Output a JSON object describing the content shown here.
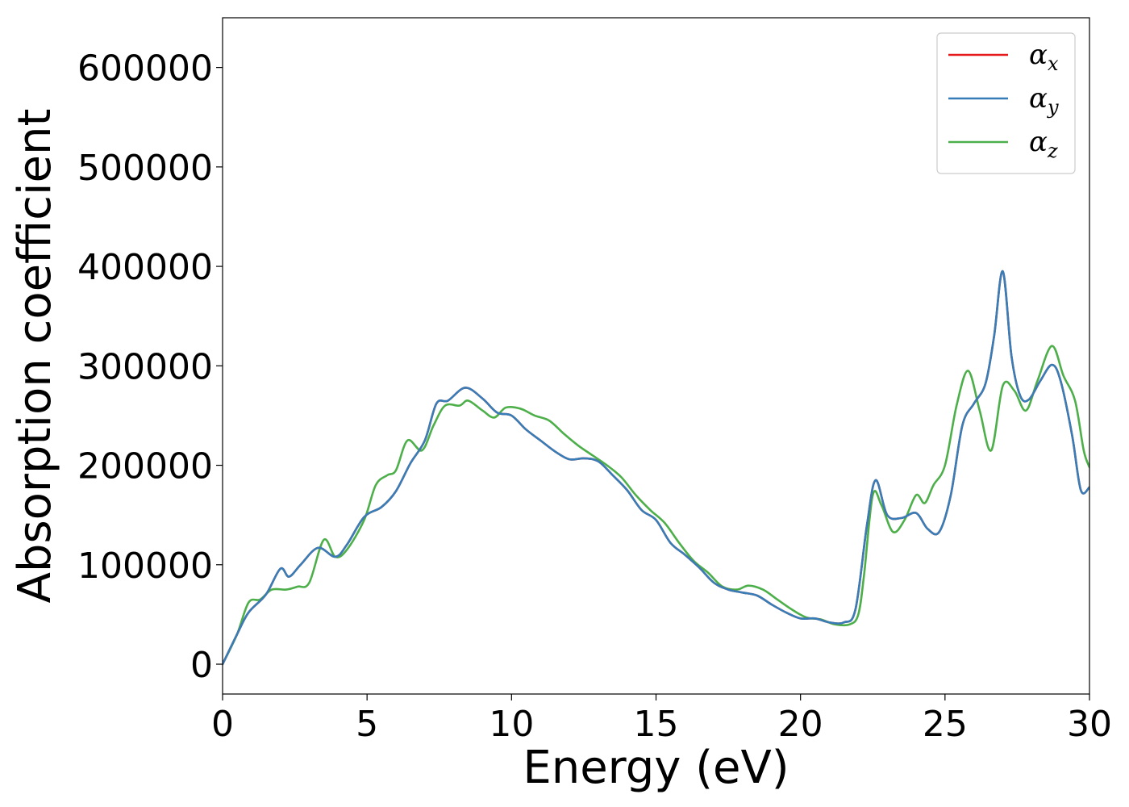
{
  "chart_data": {
    "type": "line",
    "title": "",
    "xlabel": "Energy (eV)",
    "ylabel": "Absorption coefficient",
    "xlim": [
      0,
      30
    ],
    "ylim": [
      -30000,
      650000
    ],
    "xticks": [
      0,
      5,
      10,
      15,
      20,
      25,
      30
    ],
    "yticks": [
      0,
      100000,
      200000,
      300000,
      400000,
      500000,
      600000
    ],
    "grid": false,
    "legend_position": "top-right",
    "series": [
      {
        "name": "αx",
        "legend_base": "α",
        "legend_sub": "x",
        "color": "#e41a1c",
        "x": [
          0,
          0.5,
          0.9,
          1.5,
          2.0,
          2.3,
          2.7,
          3.3,
          3.9,
          4.3,
          4.9,
          5.5,
          6.0,
          6.5,
          7.0,
          7.4,
          7.8,
          8.4,
          9.0,
          9.5,
          10.0,
          10.5,
          11.0,
          11.5,
          12.0,
          12.5,
          13.0,
          13.5,
          14.0,
          14.5,
          15.0,
          15.5,
          16.0,
          16.5,
          17.0,
          17.5,
          18.0,
          18.5,
          19.0,
          19.5,
          20.0,
          20.5,
          21.0,
          21.5,
          21.9,
          22.3,
          22.6,
          23.0,
          23.5,
          24.0,
          24.4,
          24.8,
          25.2,
          25.6,
          26.0,
          26.4,
          26.7,
          27.0,
          27.3,
          27.6,
          27.9,
          28.3,
          28.7,
          29.0,
          29.4,
          29.7,
          30.0
        ],
        "y": [
          0,
          30000,
          52000,
          70000,
          96000,
          88000,
          100000,
          117000,
          108000,
          120000,
          148000,
          158000,
          174000,
          202000,
          225000,
          262000,
          265000,
          278000,
          267000,
          253000,
          250000,
          236000,
          225000,
          214000,
          206000,
          207000,
          204000,
          190000,
          175000,
          155000,
          145000,
          122000,
          110000,
          97000,
          82000,
          75000,
          72000,
          69000,
          60000,
          52000,
          46000,
          46000,
          42000,
          42000,
          55000,
          140000,
          185000,
          150000,
          147000,
          152000,
          136000,
          133000,
          170000,
          240000,
          262000,
          282000,
          330000,
          395000,
          310000,
          270000,
          266000,
          285000,
          301000,
          285000,
          230000,
          175000,
          178000
        ]
      },
      {
        "name": "αy",
        "legend_base": "α",
        "legend_sub": "y",
        "color": "#377eb8",
        "x": [
          0,
          0.5,
          0.9,
          1.5,
          2.0,
          2.3,
          2.7,
          3.3,
          3.9,
          4.3,
          4.9,
          5.5,
          6.0,
          6.5,
          7.0,
          7.4,
          7.8,
          8.4,
          9.0,
          9.5,
          10.0,
          10.5,
          11.0,
          11.5,
          12.0,
          12.5,
          13.0,
          13.5,
          14.0,
          14.5,
          15.0,
          15.5,
          16.0,
          16.5,
          17.0,
          17.5,
          18.0,
          18.5,
          19.0,
          19.5,
          20.0,
          20.5,
          21.0,
          21.5,
          21.9,
          22.3,
          22.6,
          23.0,
          23.5,
          24.0,
          24.4,
          24.8,
          25.2,
          25.6,
          26.0,
          26.4,
          26.7,
          27.0,
          27.3,
          27.6,
          27.9,
          28.3,
          28.7,
          29.0,
          29.4,
          29.7,
          30.0
        ],
        "y": [
          0,
          30000,
          52000,
          70000,
          96000,
          88000,
          100000,
          117000,
          108000,
          120000,
          148000,
          158000,
          174000,
          202000,
          225000,
          262000,
          265000,
          278000,
          267000,
          253000,
          250000,
          236000,
          225000,
          214000,
          206000,
          207000,
          204000,
          190000,
          175000,
          155000,
          145000,
          122000,
          110000,
          97000,
          82000,
          75000,
          72000,
          69000,
          60000,
          52000,
          46000,
          46000,
          42000,
          42000,
          55000,
          140000,
          185000,
          150000,
          147000,
          152000,
          136000,
          133000,
          170000,
          240000,
          262000,
          282000,
          330000,
          395000,
          310000,
          270000,
          266000,
          285000,
          301000,
          285000,
          230000,
          175000,
          178000
        ]
      },
      {
        "name": "αz",
        "legend_base": "α",
        "legend_sub": "z",
        "color": "#4daf4a",
        "x": [
          0,
          0.5,
          0.9,
          1.3,
          1.7,
          2.2,
          2.6,
          3.0,
          3.5,
          3.9,
          4.3,
          4.9,
          5.3,
          5.7,
          6.0,
          6.4,
          6.9,
          7.3,
          7.7,
          8.2,
          8.5,
          9.0,
          9.4,
          9.8,
          10.3,
          10.8,
          11.3,
          11.8,
          12.3,
          12.8,
          13.3,
          13.8,
          14.3,
          14.8,
          15.3,
          15.8,
          16.3,
          16.8,
          17.3,
          17.8,
          18.2,
          18.7,
          19.2,
          19.7,
          20.2,
          20.7,
          21.2,
          21.7,
          22.0,
          22.2,
          22.5,
          22.8,
          23.2,
          23.6,
          24.0,
          24.3,
          24.6,
          25.0,
          25.4,
          25.8,
          26.2,
          26.6,
          27.0,
          27.4,
          27.8,
          28.2,
          28.7,
          29.1,
          29.5,
          29.8,
          30.0
        ],
        "y": [
          0,
          30000,
          62000,
          65000,
          75000,
          75000,
          78000,
          82000,
          125000,
          108000,
          115000,
          145000,
          180000,
          190000,
          195000,
          225000,
          215000,
          240000,
          260000,
          260000,
          265000,
          255000,
          248000,
          258000,
          257000,
          250000,
          245000,
          232000,
          220000,
          210000,
          200000,
          188000,
          170000,
          155000,
          142000,
          122000,
          104000,
          92000,
          78000,
          75000,
          79000,
          75000,
          65000,
          55000,
          47000,
          45000,
          40000,
          40000,
          50000,
          90000,
          170000,
          160000,
          133000,
          145000,
          170000,
          162000,
          180000,
          200000,
          260000,
          295000,
          255000,
          215000,
          280000,
          275000,
          255000,
          285000,
          320000,
          290000,
          265000,
          215000,
          198000
        ]
      }
    ]
  }
}
